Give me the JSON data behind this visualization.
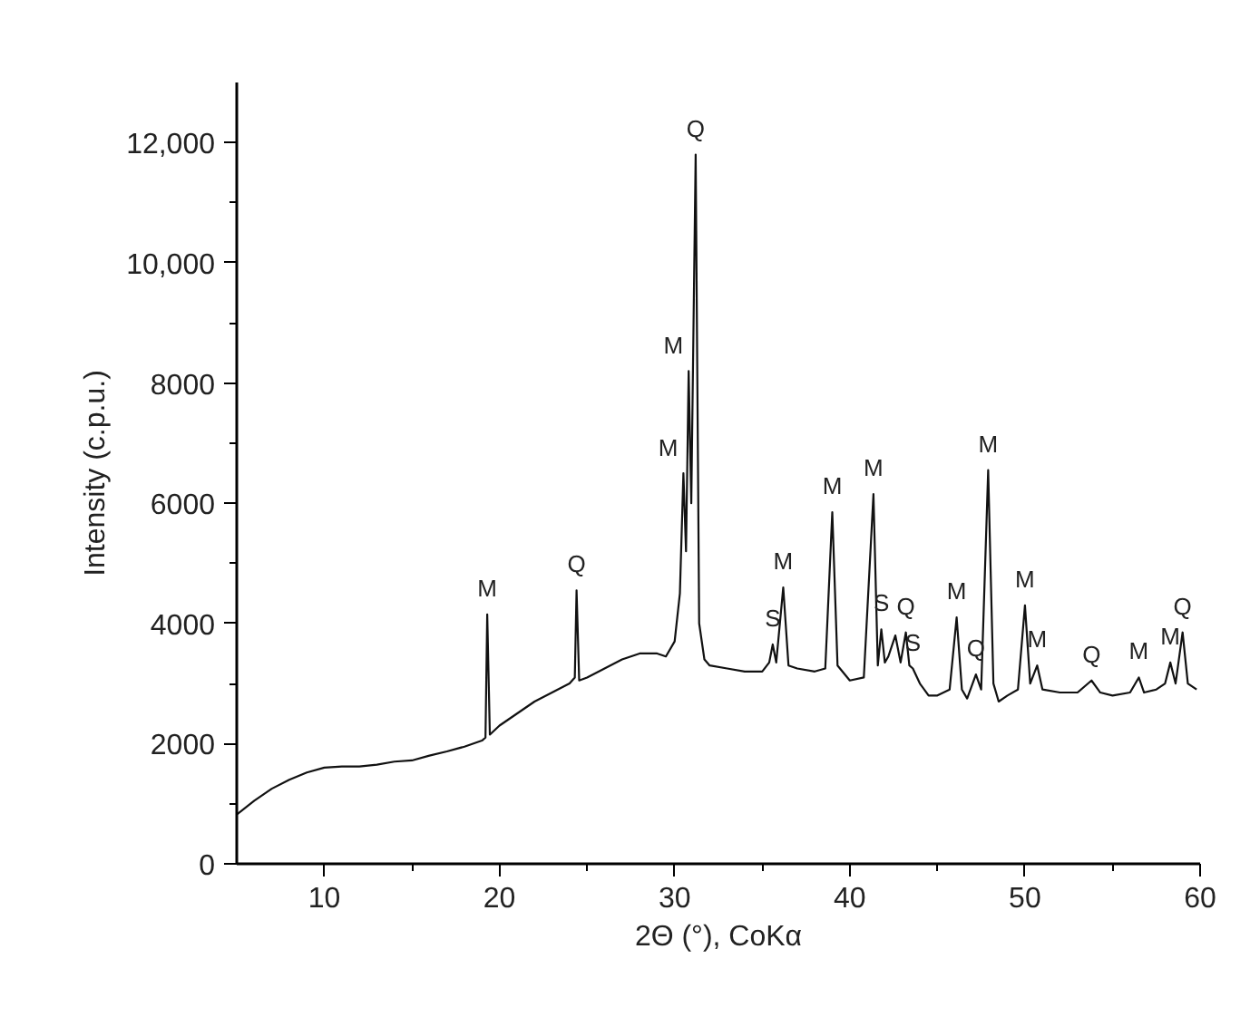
{
  "chart_data": {
    "type": "line",
    "xlabel": "2Θ (°), CoKα",
    "ylabel": "Intensity (c.p.u.)",
    "xlim": [
      5,
      60
    ],
    "ylim": [
      0,
      13000
    ],
    "xticks": [
      10,
      20,
      30,
      40,
      50,
      60
    ],
    "yticks": [
      0,
      2000,
      4000,
      6000,
      8000,
      {
        "value": 10000,
        "label": "10,000"
      },
      {
        "value": 12000,
        "label": "12,000"
      }
    ],
    "grid": false,
    "marker": "none",
    "line_style": "solid",
    "series": [
      {
        "color": "#111111",
        "x": [
          5,
          6,
          7,
          8,
          9,
          10,
          11,
          12,
          13,
          14,
          15,
          16,
          17,
          18,
          19,
          19.2,
          19.3,
          19.45,
          20,
          21,
          22,
          23,
          24,
          24.3,
          24.4,
          24.55,
          25,
          26,
          27,
          28,
          29,
          29.5,
          30,
          30.3,
          30.5,
          30.65,
          30.8,
          30.95,
          31.2,
          31.4,
          31.7,
          32,
          33,
          34,
          35,
          35.4,
          35.6,
          35.8,
          36.2,
          36.5,
          37,
          38,
          38.6,
          39.0,
          39.3,
          40,
          40.8,
          41.35,
          41.6,
          41.8,
          42.0,
          42.2,
          42.6,
          42.9,
          43.2,
          43.4,
          43.6,
          44,
          44.5,
          45,
          45.7,
          46.1,
          46.4,
          46.7,
          47.2,
          47.5,
          47.9,
          48.2,
          48.5,
          49,
          49.6,
          50.0,
          50.3,
          50.7,
          51,
          52,
          53,
          53.8,
          54.3,
          55,
          56,
          56.5,
          56.8,
          57.5,
          58.0,
          58.3,
          58.6,
          59.0,
          59.3,
          59.8
        ],
        "values": [
          820,
          1050,
          1250,
          1400,
          1520,
          1600,
          1620,
          1620,
          1650,
          1700,
          1720,
          1800,
          1870,
          1950,
          2050,
          2100,
          4150,
          2150,
          2300,
          2500,
          2700,
          2850,
          3000,
          3100,
          4550,
          3050,
          3100,
          3250,
          3400,
          3500,
          3500,
          3450,
          3700,
          4500,
          6500,
          5200,
          8200,
          6000,
          11800,
          4000,
          3400,
          3300,
          3250,
          3200,
          3200,
          3350,
          3650,
          3350,
          4600,
          3300,
          3250,
          3200,
          3250,
          5850,
          3300,
          3050,
          3100,
          6150,
          3300,
          3900,
          3350,
          3450,
          3800,
          3350,
          3850,
          3300,
          3250,
          3000,
          2800,
          2800,
          2900,
          4100,
          2900,
          2750,
          3150,
          2900,
          6550,
          3000,
          2700,
          2800,
          2900,
          4300,
          3000,
          3300,
          2900,
          2850,
          2850,
          3050,
          2850,
          2800,
          2850,
          3100,
          2850,
          2900,
          3000,
          3350,
          3000,
          3850,
          3000,
          2900
        ]
      }
    ],
    "annotations": [
      {
        "text": "M",
        "x": 19.3,
        "y": 4150
      },
      {
        "text": "Q",
        "x": 24.4,
        "y": 4550
      },
      {
        "text": "M",
        "x": 30.5,
        "y": 6500
      },
      {
        "text": "M",
        "x": 30.8,
        "y": 8200
      },
      {
        "text": "Q",
        "x": 31.2,
        "y": 11800
      },
      {
        "text": "S",
        "x": 35.6,
        "y": 3650
      },
      {
        "text": "M",
        "x": 36.2,
        "y": 4600
      },
      {
        "text": "M",
        "x": 39.0,
        "y": 5850
      },
      {
        "text": "M",
        "x": 41.35,
        "y": 6150
      },
      {
        "text": "S",
        "x": 41.8,
        "y": 3900
      },
      {
        "text": "Q",
        "x": 43.2,
        "y": 3850
      },
      {
        "text": "S",
        "x": 43.6,
        "y": 3250
      },
      {
        "text": "M",
        "x": 46.1,
        "y": 4100
      },
      {
        "text": "Q",
        "x": 47.2,
        "y": 3150
      },
      {
        "text": "M",
        "x": 47.9,
        "y": 6550
      },
      {
        "text": "M",
        "x": 50.0,
        "y": 4300
      },
      {
        "text": "M",
        "x": 50.7,
        "y": 3300
      },
      {
        "text": "Q",
        "x": 53.8,
        "y": 3050
      },
      {
        "text": "M",
        "x": 56.5,
        "y": 3100
      },
      {
        "text": "M",
        "x": 58.3,
        "y": 3350
      },
      {
        "text": "Q",
        "x": 59.0,
        "y": 3850
      }
    ]
  }
}
